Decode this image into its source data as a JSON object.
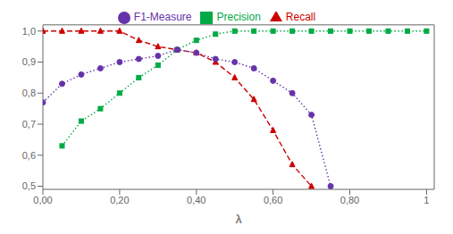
{
  "chart_data": {
    "type": "line",
    "xlabel": "λ",
    "legend": "top",
    "series": [
      {
        "name": "Recall",
        "color": "#cc0000",
        "marker": "triangle",
        "line_style": "dashed",
        "x": [
          0.0,
          0.05,
          0.1,
          0.15,
          0.2,
          0.25,
          0.3,
          0.35,
          0.4,
          0.45,
          0.5,
          0.55,
          0.6,
          0.65,
          0.7
        ],
        "values": [
          1.0,
          1.0,
          1.0,
          1.0,
          1.0,
          0.97,
          0.95,
          0.94,
          0.93,
          0.9,
          0.85,
          0.78,
          0.68,
          0.57,
          0.5
        ]
      },
      {
        "name": "Precision",
        "color": "#00aa44",
        "marker": "square",
        "line_style": "dotted",
        "x": [
          0.05,
          0.1,
          0.15,
          0.2,
          0.25,
          0.3,
          0.35,
          0.4,
          0.45,
          0.5,
          0.55,
          0.6,
          0.65,
          0.7,
          0.75,
          0.8,
          0.85,
          0.9,
          0.95,
          1.0
        ],
        "values": [
          0.63,
          0.71,
          0.75,
          0.8,
          0.85,
          0.89,
          0.94,
          0.97,
          0.99,
          1.0,
          1.0,
          1.0,
          1.0,
          1.0,
          1.0,
          1.0,
          1.0,
          1.0,
          1.0,
          1.0
        ]
      },
      {
        "name": "F1-Measure",
        "color": "#6633aa",
        "marker": "circle",
        "line_style": "dotted",
        "x": [
          0.0,
          0.05,
          0.1,
          0.15,
          0.2,
          0.25,
          0.3,
          0.35,
          0.4,
          0.45,
          0.5,
          0.55,
          0.6,
          0.65,
          0.7,
          0.75
        ],
        "values": [
          0.77,
          0.83,
          0.86,
          0.88,
          0.9,
          0.91,
          0.92,
          0.94,
          0.93,
          0.91,
          0.9,
          0.88,
          0.84,
          0.8,
          0.73,
          0.5
        ]
      }
    ],
    "xlim": [
      0.0,
      1.02
    ],
    "ylim": [
      0.49,
      1.02
    ],
    "xticks": [
      {
        "value": 0.0,
        "label": "0,00"
      },
      {
        "value": 0.2,
        "label": "0,20"
      },
      {
        "value": 0.4,
        "label": "0,40"
      },
      {
        "value": 0.6,
        "label": "0,60"
      },
      {
        "value": 0.8,
        "label": "0,80"
      },
      1
    ],
    "yticks": [
      {
        "value": 0.5,
        "label": "0,5"
      },
      {
        "value": 0.6,
        "label": "0,6"
      },
      {
        "value": 0.7,
        "label": "0,7"
      },
      {
        "value": 0.8,
        "label": "0,8"
      },
      {
        "value": 0.9,
        "label": "0,9"
      },
      {
        "value": 1.0,
        "label": "1,0"
      }
    ]
  }
}
